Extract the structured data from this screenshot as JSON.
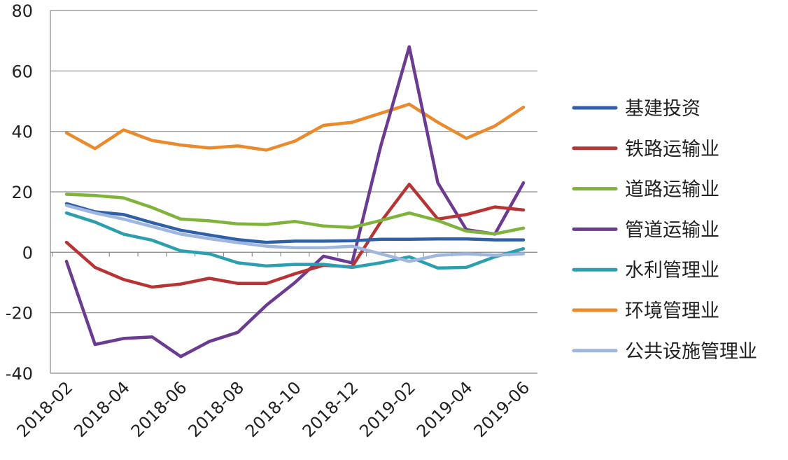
{
  "chart_data": {
    "type": "line",
    "categories": [
      "2018-02",
      "2018-03",
      "2018-04",
      "2018-05",
      "2018-06",
      "2018-07",
      "2018-08",
      "2018-09",
      "2018-10",
      "2018-11",
      "2018-12",
      "2019-01",
      "2019-02",
      "2019-03",
      "2019-04",
      "2019-05",
      "2019-06"
    ],
    "x_tick_labels": [
      "2018-02",
      "2018-04",
      "2018-06",
      "2018-08",
      "2018-10",
      "2018-12",
      "2019-02",
      "2019-04",
      "2019-06"
    ],
    "ylim": [
      -40,
      80
    ],
    "y_ticks": [
      -40,
      -20,
      0,
      20,
      40,
      60,
      80
    ],
    "grid": "horizontal",
    "legend_position": "right",
    "series": [
      {
        "name": "基建投资",
        "color": "#2f5fa7",
        "values": [
          16.1,
          13.4,
          12.5,
          9.8,
          7.3,
          5.7,
          4.2,
          3.3,
          3.7,
          3.7,
          3.8,
          4.3,
          4.3,
          4.4,
          4.4,
          4.1,
          4.1
        ]
      },
      {
        "name": "铁路运输业",
        "color": "#b83333",
        "values": [
          3.3,
          -5.0,
          -9.0,
          -11.5,
          -10.5,
          -8.6,
          -10.3,
          -10.3,
          -7.1,
          -4.3,
          -4.8,
          10.0,
          22.5,
          11.0,
          12.5,
          15.0,
          14.0
        ]
      },
      {
        "name": "道路运输业",
        "color": "#7fb33b",
        "values": [
          19.2,
          18.8,
          18.0,
          14.8,
          11.0,
          10.4,
          9.4,
          9.2,
          10.2,
          8.7,
          8.2,
          10.5,
          13.0,
          10.5,
          7.0,
          6.1,
          8.0
        ]
      },
      {
        "name": "管道运输业",
        "color": "#6b3b92",
        "values": [
          -3.0,
          -30.5,
          -28.5,
          -28.0,
          -34.5,
          -29.5,
          -26.5,
          -17.5,
          -10.0,
          -1.3,
          -3.5,
          35.0,
          68.0,
          23.0,
          7.5,
          6.0,
          23.0
        ]
      },
      {
        "name": "水利管理业",
        "color": "#2b9fb0",
        "values": [
          13.0,
          10.0,
          6.0,
          4.0,
          0.5,
          -0.5,
          -3.5,
          -4.5,
          -4.0,
          -4.0,
          -5.0,
          -3.5,
          -1.5,
          -5.2,
          -5.0,
          -1.5,
          1.2
        ]
      },
      {
        "name": "环境管理业",
        "color": "#ea8a2c",
        "values": [
          39.5,
          34.3,
          40.5,
          37.0,
          35.5,
          34.5,
          35.2,
          33.8,
          36.8,
          42.0,
          43.0,
          46.0,
          49.0,
          43.0,
          37.7,
          41.8,
          48.0
        ]
      },
      {
        "name": "公共设施管理业",
        "color": "#9fb6df",
        "values": [
          15.5,
          13.0,
          11.0,
          8.5,
          6.0,
          4.5,
          3.2,
          2.0,
          1.5,
          1.5,
          2.0,
          -0.5,
          -3.0,
          -1.0,
          -0.5,
          -1.0,
          -0.5
        ]
      }
    ]
  }
}
